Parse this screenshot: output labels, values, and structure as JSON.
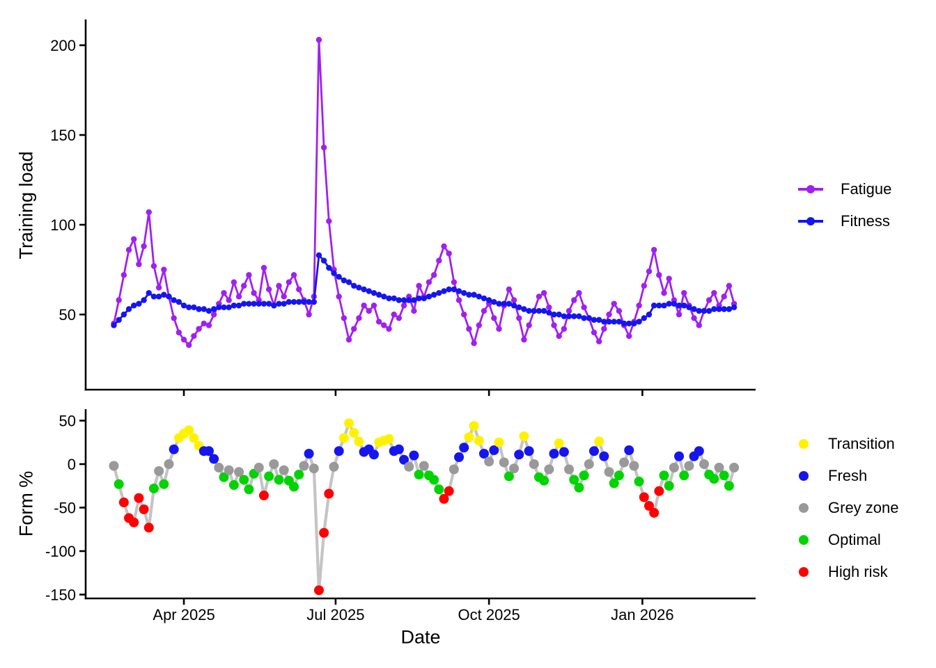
{
  "figure": {
    "top_panel": {
      "y_axis_title": "Training load",
      "y_ticks": [
        200,
        150,
        100,
        50
      ]
    },
    "bottom_panel": {
      "y_axis_title": "Form %",
      "y_ticks": [
        50,
        0,
        -50,
        -100,
        -150
      ]
    },
    "x_axis": {
      "title": "Date",
      "ticks": [
        {
          "label": "Apr 2025",
          "day": 42
        },
        {
          "label": "Jul 2025",
          "day": 133
        },
        {
          "label": "Oct 2025",
          "day": 225
        },
        {
          "label": "Jan 2026",
          "day": 317
        }
      ]
    }
  },
  "legend_top": [
    {
      "label": "Fatigue",
      "color": "#A020F0"
    },
    {
      "label": "Fitness",
      "color": "#1515F0"
    }
  ],
  "legend_bottom": [
    {
      "label": "Transition",
      "color": "#FFF200"
    },
    {
      "label": "Fresh",
      "color": "#1515F0"
    },
    {
      "label": "Grey zone",
      "color": "#999999"
    },
    {
      "label": "Optimal",
      "color": "#00D400"
    },
    {
      "label": "High risk",
      "color": "#FF0000"
    }
  ],
  "chart_data": [
    {
      "type": "line",
      "panel": "top",
      "title": "",
      "xlabel": "Date",
      "ylabel": "Training load",
      "ylim": [
        0,
        210
      ],
      "x_tick_labels": [
        "Apr 2025",
        "Jul 2025",
        "Oct 2025",
        "Jan 2026"
      ],
      "x_start_date": "2025-02-18",
      "x_step_days": 3,
      "grid": false,
      "legend_position": "right",
      "series": [
        {
          "name": "Fatigue",
          "color": "#A020F0",
          "values": [
            45,
            58,
            72,
            86,
            92,
            78,
            88,
            107,
            77,
            65,
            75,
            60,
            48,
            40,
            36,
            33,
            38,
            42,
            45,
            44,
            50,
            56,
            62,
            58,
            68,
            60,
            66,
            72,
            62,
            58,
            76,
            64,
            55,
            66,
            60,
            68,
            72,
            64,
            58,
            50,
            60,
            203,
            143,
            102,
            75,
            60,
            48,
            36,
            42,
            48,
            55,
            52,
            55,
            46,
            44,
            42,
            50,
            48,
            55,
            60,
            52,
            66,
            60,
            68,
            72,
            80,
            88,
            84,
            68,
            58,
            50,
            42,
            34,
            44,
            52,
            56,
            48,
            42,
            55,
            64,
            58,
            48,
            36,
            44,
            52,
            60,
            62,
            54,
            44,
            38,
            42,
            52,
            58,
            62,
            54,
            48,
            40,
            35,
            42,
            50,
            56,
            52,
            44,
            38,
            46,
            55,
            66,
            74,
            86,
            72,
            62,
            70,
            58,
            50,
            62,
            55,
            48,
            44,
            52,
            58,
            62,
            55,
            60,
            66,
            56
          ]
        },
        {
          "name": "Fitness",
          "color": "#1515F0",
          "values": [
            44,
            47,
            50,
            53,
            55,
            56,
            58,
            62,
            60,
            60,
            61,
            60,
            58,
            57,
            55,
            54,
            54,
            53,
            53,
            52,
            53,
            54,
            54,
            54,
            55,
            55,
            56,
            56,
            56,
            56,
            56,
            56,
            55,
            56,
            56,
            57,
            57,
            57,
            57,
            57,
            57,
            83,
            80,
            76,
            73,
            71,
            69,
            68,
            66,
            65,
            64,
            63,
            62,
            61,
            60,
            59,
            59,
            58,
            58,
            58,
            58,
            59,
            59,
            60,
            61,
            62,
            63,
            64,
            64,
            63,
            62,
            61,
            61,
            60,
            59,
            58,
            57,
            56,
            56,
            56,
            55,
            54,
            53,
            52,
            52,
            52,
            52,
            51,
            50,
            50,
            49,
            49,
            49,
            49,
            48,
            48,
            47,
            47,
            46,
            46,
            46,
            46,
            45,
            45,
            45,
            46,
            48,
            50,
            55,
            55,
            55,
            56,
            56,
            55,
            55,
            54,
            53,
            52,
            52,
            52,
            53,
            53,
            53,
            53,
            54
          ]
        }
      ]
    },
    {
      "type": "scatter",
      "panel": "bottom",
      "title": "",
      "xlabel": "Date",
      "ylabel": "Form %",
      "ylim": [
        -150,
        55
      ],
      "x_tick_labels": [
        "Apr 2025",
        "Jul 2025",
        "Oct 2025",
        "Jan 2026"
      ],
      "x_start_date": "2025-02-18",
      "x_step_days": 3,
      "grid": false,
      "connecting_line_color": "#C4C4C4",
      "zone_colors": {
        "T": "#FFF200",
        "F": "#1515F0",
        "G": "#999999",
        "O": "#00D400",
        "H": "#FF0000"
      },
      "zone_labels": {
        "T": "Transition",
        "F": "Fresh",
        "G": "Grey zone",
        "O": "Optimal",
        "H": "High risk"
      },
      "values": [
        -2,
        -23,
        -44,
        -62,
        -67,
        -39,
        -52,
        -73,
        -28,
        -8,
        -23,
        0,
        17,
        30,
        35,
        39,
        30,
        21,
        15,
        15,
        6,
        -4,
        -15,
        -7,
        -24,
        -9,
        -18,
        -29,
        -11,
        -4,
        -36,
        -14,
        0,
        -18,
        -7,
        -19,
        -26,
        -12,
        -2,
        12,
        -5,
        -145,
        -79,
        -34,
        -3,
        15,
        30,
        47,
        36,
        26,
        14,
        17,
        11,
        25,
        27,
        29,
        15,
        17,
        5,
        -3,
        10,
        -12,
        -2,
        -13,
        -18,
        -29,
        -40,
        -31,
        -6,
        8,
        19,
        31,
        44,
        27,
        12,
        3,
        16,
        25,
        2,
        -14,
        -5,
        11,
        32,
        15,
        0,
        -15,
        -19,
        -6,
        12,
        24,
        14,
        -6,
        -18,
        -27,
        -13,
        0,
        15,
        26,
        9,
        -9,
        -22,
        -13,
        2,
        16,
        -2,
        -20,
        -38,
        -48,
        -56,
        -31,
        -13,
        -25,
        -4,
        9,
        -13,
        -2,
        9,
        15,
        0,
        -12,
        -17,
        -4,
        -13,
        -25,
        -4
      ],
      "zones": [
        "G",
        "O",
        "H",
        "H",
        "H",
        "H",
        "H",
        "H",
        "O",
        "G",
        "O",
        "G",
        "F",
        "T",
        "T",
        "T",
        "T",
        "T",
        "F",
        "F",
        "F",
        "G",
        "O",
        "G",
        "O",
        "G",
        "O",
        "O",
        "O",
        "G",
        "H",
        "O",
        "G",
        "O",
        "G",
        "O",
        "O",
        "O",
        "G",
        "F",
        "G",
        "H",
        "H",
        "H",
        "G",
        "F",
        "T",
        "T",
        "T",
        "T",
        "F",
        "F",
        "F",
        "T",
        "T",
        "T",
        "F",
        "F",
        "F",
        "G",
        "F",
        "O",
        "G",
        "O",
        "O",
        "O",
        "H",
        "H",
        "G",
        "F",
        "F",
        "T",
        "T",
        "T",
        "F",
        "G",
        "F",
        "T",
        "G",
        "O",
        "G",
        "F",
        "T",
        "F",
        "G",
        "O",
        "O",
        "G",
        "F",
        "T",
        "F",
        "G",
        "O",
        "O",
        "O",
        "G",
        "F",
        "T",
        "F",
        "G",
        "O",
        "O",
        "G",
        "F",
        "G",
        "O",
        "H",
        "H",
        "H",
        "H",
        "O",
        "O",
        "G",
        "F",
        "O",
        "G",
        "F",
        "F",
        "G",
        "O",
        "O",
        "G",
        "O",
        "O",
        "G"
      ]
    }
  ]
}
